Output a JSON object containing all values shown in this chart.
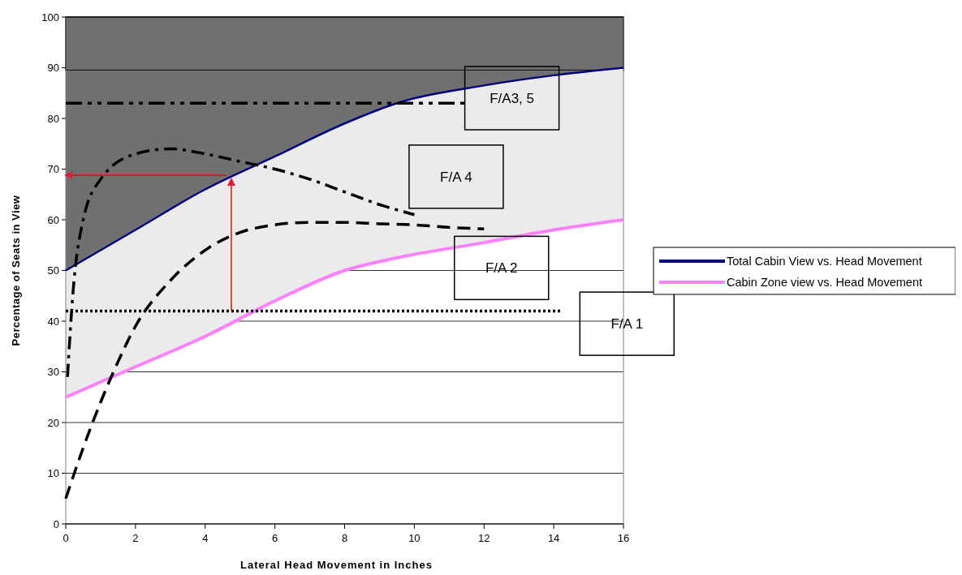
{
  "chart_data": {
    "type": "line",
    "xlabel": "Lateral Head Movement in Inches",
    "ylabel": "Percentage of Seats in View",
    "xlim": [
      0,
      16
    ],
    "xticks": [
      0,
      2,
      4,
      6,
      8,
      10,
      12,
      14,
      16
    ],
    "ylim": [
      0,
      100
    ],
    "yticks": [
      0,
      10,
      20,
      30,
      40,
      50,
      60,
      70,
      80,
      90,
      100
    ],
    "grid": "y",
    "legend": "right",
    "bands": [
      {
        "axis": "y",
        "from": 89.5,
        "to": 100,
        "color": "#707070"
      }
    ],
    "series": [
      {
        "name": "Total Cabin View vs. Head Movement",
        "color": "#000080",
        "line_style": "solid",
        "x": [
          0,
          2,
          4,
          6,
          8,
          9.5,
          12,
          14,
          16
        ],
        "values": [
          50,
          58,
          66,
          72.5,
          79,
          83,
          86.5,
          88.5,
          90
        ],
        "lower": [
          50,
          58,
          66,
          72.5,
          79,
          83,
          86.5,
          88.5,
          90
        ],
        "upper": [
          89.5,
          89.5,
          89.5,
          89.5,
          89.5,
          89.5,
          89.5,
          89.5,
          89.5
        ]
      },
      {
        "name": "Cabin Zone view vs. Head Movement",
        "color": "#ff80ff",
        "line_style": "solid",
        "x": [
          0,
          2,
          4,
          6,
          8,
          9.5,
          12,
          14,
          16
        ],
        "values": [
          25,
          31,
          37,
          44,
          50,
          52.5,
          55.5,
          58,
          60
        ],
        "lower": [
          25,
          31,
          37,
          44,
          50,
          52.5,
          55.5,
          58,
          60
        ],
        "upper": [
          50,
          58,
          66,
          72.5,
          79,
          83,
          86.5,
          88.5,
          90
        ]
      },
      {
        "color": "#000000",
        "line_style": "dashed",
        "x": [
          0,
          0.5,
          1,
          1.5,
          2,
          3,
          4,
          5,
          6,
          7,
          8,
          9,
          10,
          11,
          12
        ],
        "values": [
          5,
          15,
          24,
          32,
          39,
          48,
          54,
          57.5,
          59,
          59.5,
          59.5,
          59.2,
          59,
          58.5,
          58.2
        ]
      },
      {
        "color": "#000000",
        "line_style": "dashdot",
        "x": [
          0.05,
          0.2,
          0.5,
          1,
          2,
          3,
          4,
          5,
          6,
          7,
          8,
          9,
          10
        ],
        "values": [
          29,
          45,
          60,
          68,
          73,
          74,
          73,
          71.5,
          70,
          68,
          65.5,
          63,
          61
        ]
      },
      {
        "color": "#000000",
        "line_style": "dotted",
        "x": [
          0,
          14.2
        ],
        "values": [
          42,
          42
        ]
      },
      {
        "color": "#000000",
        "line_style": "dashdotdot",
        "x": [
          0,
          11.5
        ],
        "values": [
          83,
          83
        ]
      },
      {
        "color": "#ff0000",
        "line_style": "solid",
        "x": [
          4.75,
          4.75
        ],
        "values": [
          42,
          68
        ]
      },
      {
        "color": "#ff0000",
        "line_style": "solid",
        "x": [
          4.6,
          0
        ],
        "values": [
          68.8,
          68.8
        ]
      }
    ],
    "annotations": [
      "F/A3, 5",
      "F/A 4",
      "F/A 2",
      "F/A 1"
    ]
  }
}
